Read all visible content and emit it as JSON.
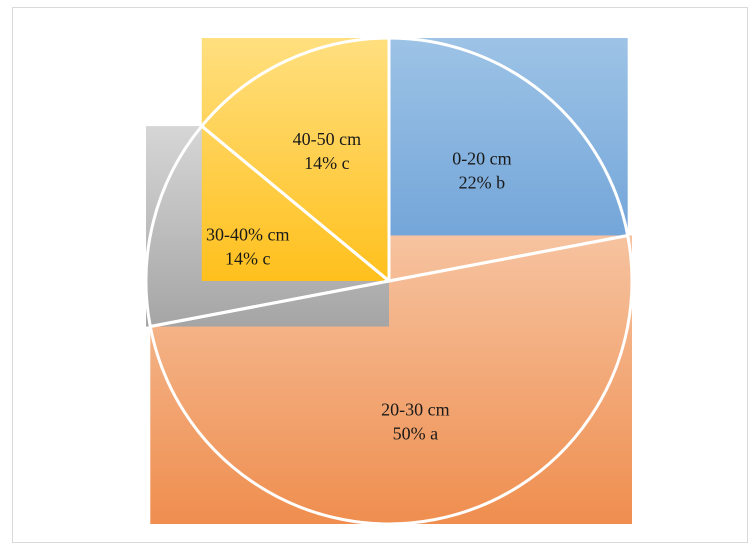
{
  "chart_data": {
    "type": "pie",
    "title": "",
    "slices": [
      {
        "category": "0-20 cm",
        "value": 22,
        "percent_label": "22%",
        "letter": "b",
        "color_top": "#9dc3e6",
        "color_bottom": "#6a9fd6"
      },
      {
        "category": "20-30 cm",
        "value": 50,
        "percent_label": "50%",
        "letter": "a",
        "color_top": "#f6c3a0",
        "color_bottom": "#ef8e4f"
      },
      {
        "category": "30-40% cm",
        "value": 14,
        "percent_label": "14%",
        "letter": "c",
        "color_top": "#d6d6d6",
        "color_bottom": "#a5a5a5"
      },
      {
        "category": "40-50 cm",
        "value": 14,
        "percent_label": "14%",
        "letter": "c",
        "color_top": "#ffdf7f",
        "color_bottom": "#ffc01d"
      }
    ],
    "legend": "none",
    "start_angle": "12 o'clock, clockwise",
    "fill_style": "gradient bounding boxes"
  }
}
